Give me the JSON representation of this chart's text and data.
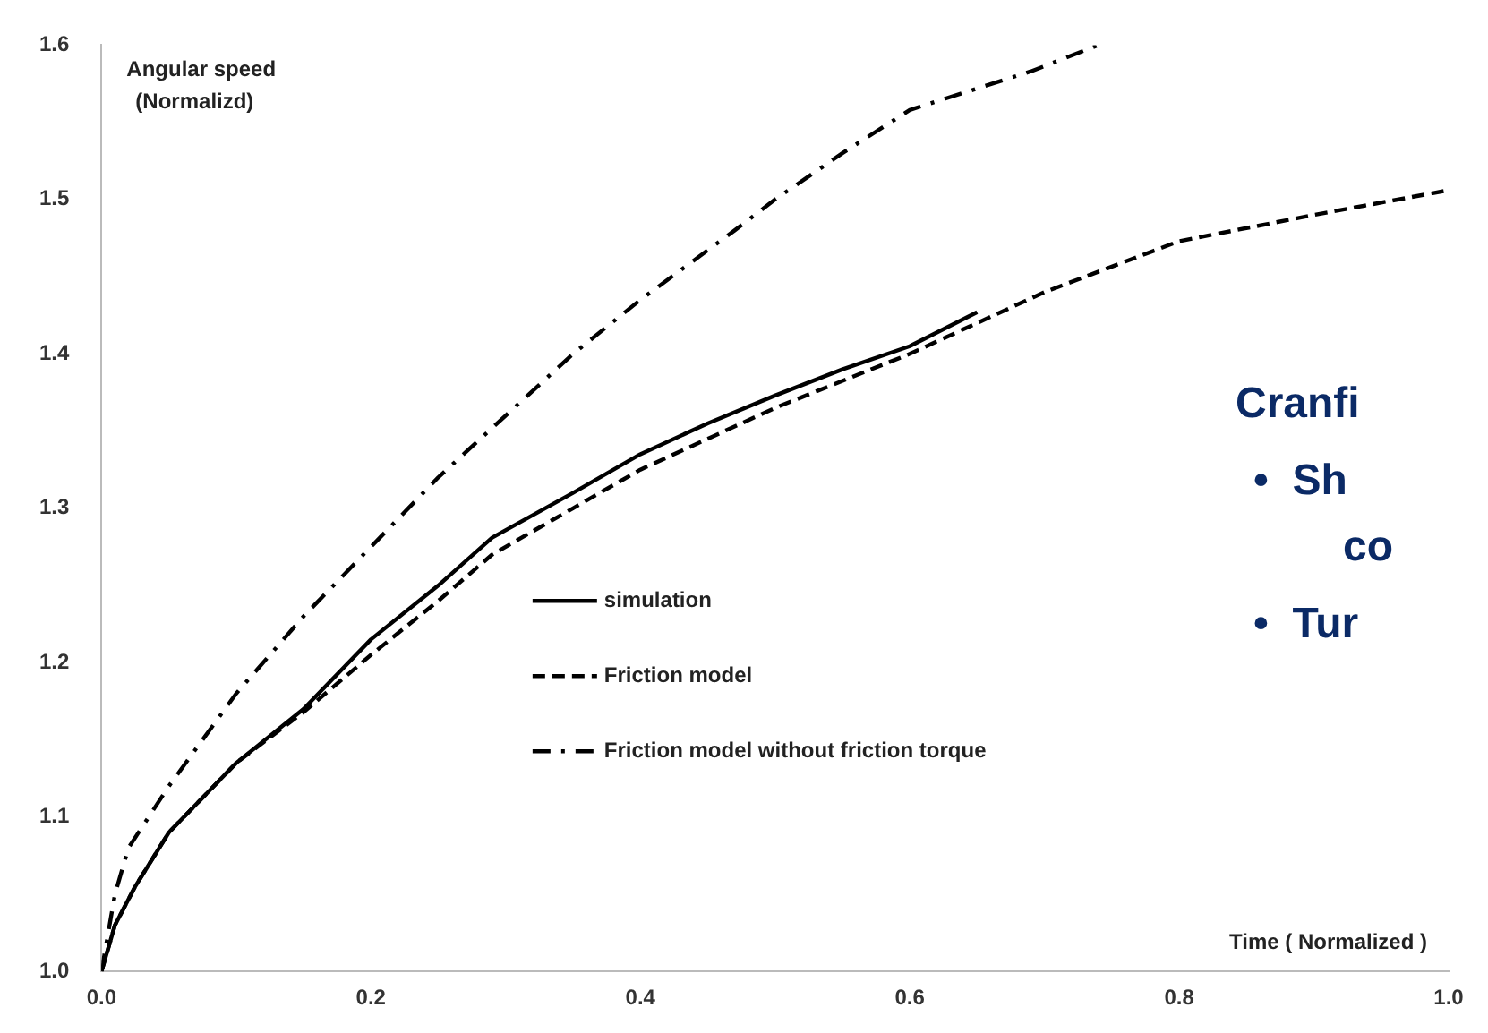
{
  "chart_data": {
    "type": "line",
    "xlabel": "Time ( Normalized )",
    "ylabel": "Angular speed\n(Normalizd)",
    "xlim": [
      0,
      1.0
    ],
    "xticks": [
      {
        "value": 0,
        "label": "0.0"
      },
      0.2,
      0.4,
      0.6,
      0.8,
      {
        "value": 1.0,
        "label": "1.0"
      }
    ],
    "ylim": [
      1.0,
      1.6
    ],
    "yticks": [
      {
        "value": 1.0,
        "label": "1.0"
      },
      1.1,
      1.2,
      1.3,
      1.4,
      1.5,
      1.6
    ],
    "grid": false,
    "legend": "center",
    "marker": "none",
    "series": [
      {
        "name": "simulation",
        "color": "#000000",
        "line_style": "solid",
        "x": [
          0,
          0.01,
          0.025,
          0.05,
          0.1,
          0.15,
          0.2,
          0.25,
          0.29,
          0.35,
          0.4,
          0.45,
          0.5,
          0.55,
          0.6,
          0.65
        ],
        "values": [
          1.0,
          1.03,
          1.055,
          1.09,
          1.135,
          1.17,
          1.215,
          1.25,
          1.281,
          1.31,
          1.335,
          1.355,
          1.373,
          1.39,
          1.405,
          1.427
        ]
      },
      {
        "name": "Friction model",
        "color": "#000000",
        "line_style": "dashed",
        "x": [
          0,
          0.01,
          0.025,
          0.05,
          0.1,
          0.15,
          0.2,
          0.25,
          0.29,
          0.35,
          0.4,
          0.5,
          0.6,
          0.7,
          0.8,
          0.9,
          1.0
        ],
        "values": [
          1.0,
          1.03,
          1.055,
          1.09,
          1.135,
          1.168,
          1.205,
          1.24,
          1.27,
          1.3,
          1.325,
          1.365,
          1.4,
          1.44,
          1.473,
          1.49,
          1.506
        ]
      },
      {
        "name": "Friction model without friction torque",
        "color": "#000000",
        "line_style": "dashdot",
        "x": [
          0,
          0.01,
          0.02,
          0.05,
          0.1,
          0.15,
          0.2,
          0.25,
          0.3,
          0.35,
          0.4,
          0.47,
          0.5,
          0.55,
          0.6,
          0.69,
          0.74
        ],
        "values": [
          1.0,
          1.05,
          1.08,
          1.12,
          1.18,
          1.23,
          1.275,
          1.32,
          1.36,
          1.4,
          1.435,
          1.48,
          1.5,
          1.53,
          1.558,
          1.583,
          1.6
        ]
      }
    ],
    "annotations": [
      "Cranfi",
      "•  Sh",
      "co",
      "•  Tur"
    ]
  }
}
